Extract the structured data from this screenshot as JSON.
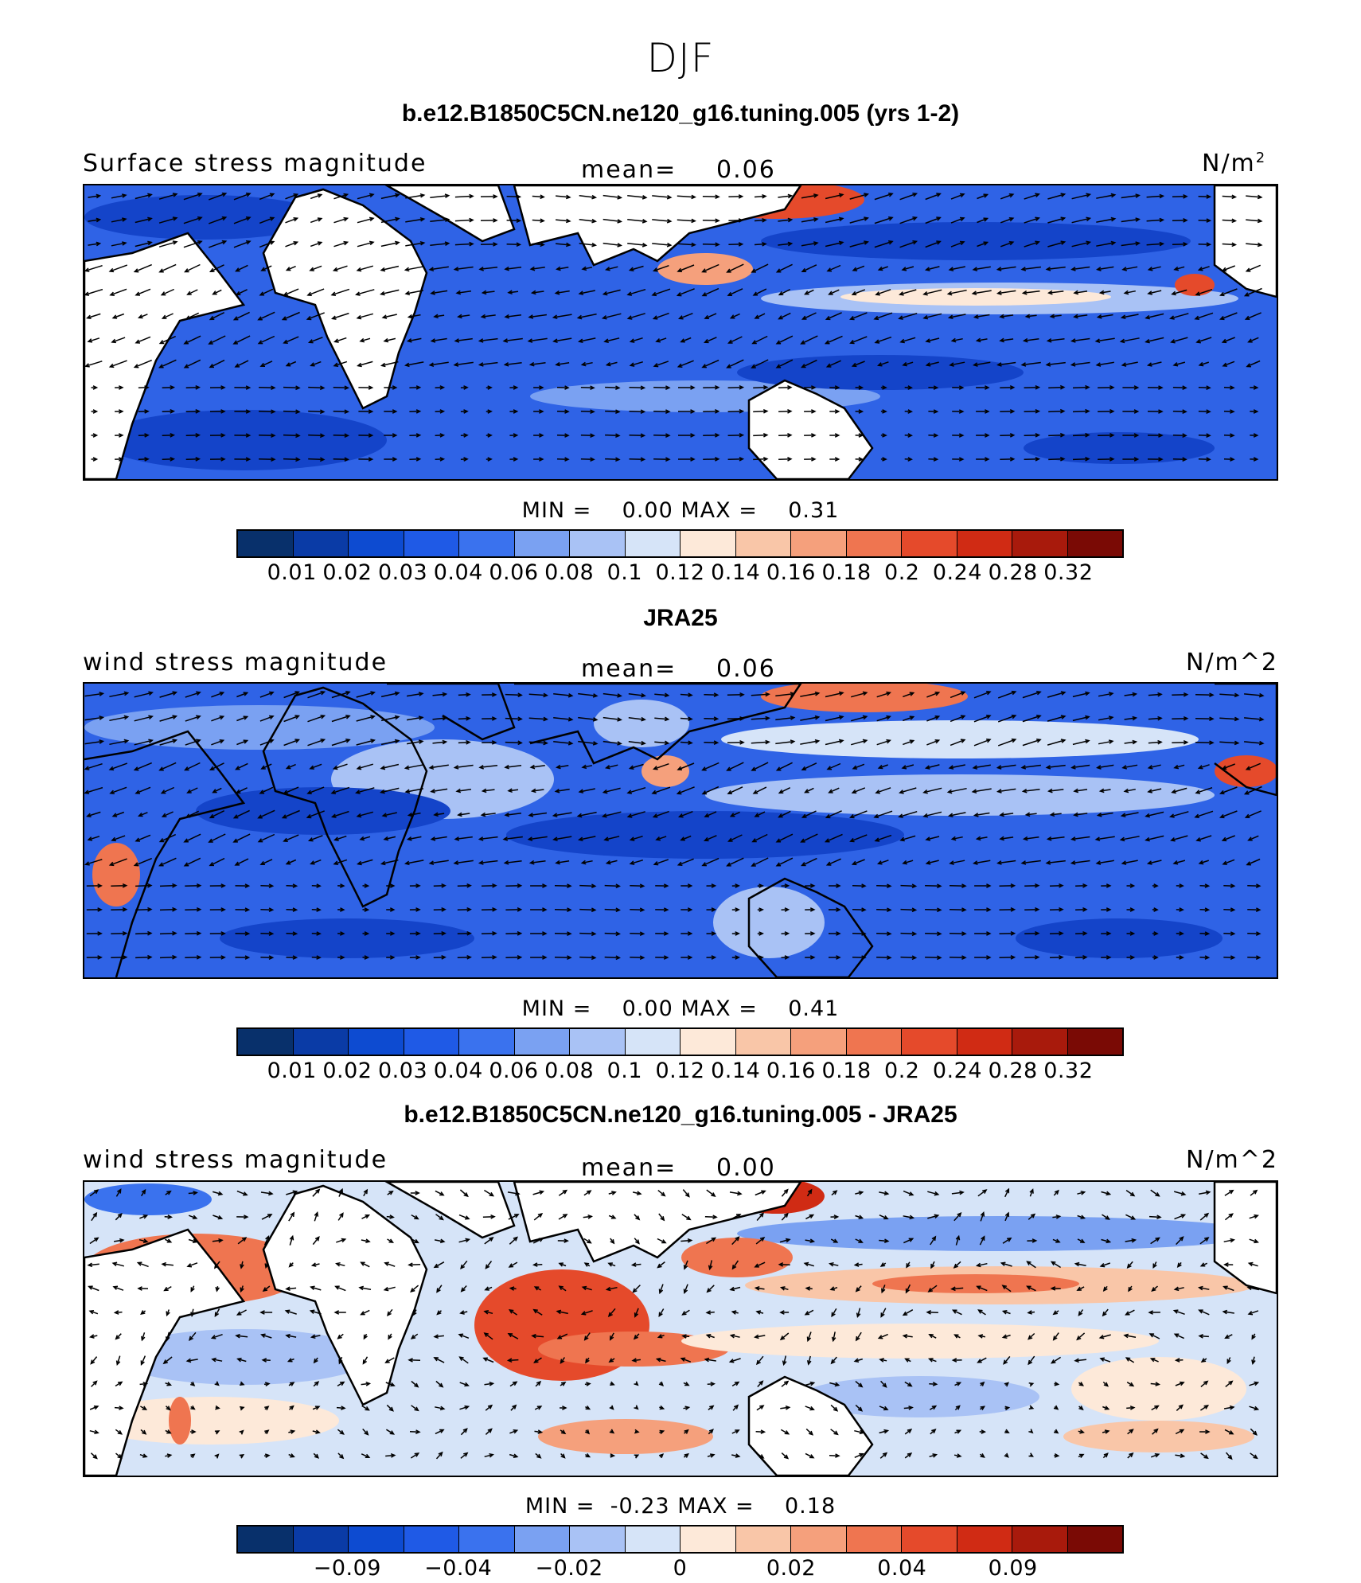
{
  "figure": {
    "season": "DJF"
  },
  "panels": [
    {
      "title": "b.e12.B1850C5CN.ne120_g16.tuning.005 (yrs 1-2)",
      "left_label": "Surface stress magnitude",
      "mean_label": "mean=",
      "mean_value": "0.06",
      "units": "N/m",
      "units_sup": "2",
      "min_label": "MIN =",
      "min_value": "0.00",
      "max_label": "MAX =",
      "max_value": "0.31",
      "colorbar": {
        "ticks": [
          "0.01",
          "0.02",
          "0.03",
          "0.04",
          "0.06",
          "0.08",
          "0.1",
          "0.12",
          "0.14",
          "0.16",
          "0.18",
          "0.2",
          "0.24",
          "0.28",
          "0.32"
        ],
        "colors": [
          "#08306b",
          "#0a3ba6",
          "#0d4bd1",
          "#1f5ae6",
          "#3a72ee",
          "#7aa1f2",
          "#a9c2f5",
          "#d6e4f8",
          "#fde9d9",
          "#f9c6a8",
          "#f5a07c",
          "#ef7550",
          "#e54a2b",
          "#d02b14",
          "#a81a0c",
          "#7a0a05"
        ]
      },
      "map_type": "magnitude"
    },
    {
      "title": "JRA25",
      "left_label": "wind stress magnitude",
      "mean_label": "mean=",
      "mean_value": "0.06",
      "units": "N/m^2",
      "units_sup": "",
      "min_label": "MIN =",
      "min_value": "0.00",
      "max_label": "MAX =",
      "max_value": "0.41",
      "colorbar": {
        "ticks": [
          "0.01",
          "0.02",
          "0.03",
          "0.04",
          "0.06",
          "0.08",
          "0.1",
          "0.12",
          "0.14",
          "0.16",
          "0.18",
          "0.2",
          "0.24",
          "0.28",
          "0.32"
        ],
        "colors": [
          "#08306b",
          "#0a3ba6",
          "#0d4bd1",
          "#1f5ae6",
          "#3a72ee",
          "#7aa1f2",
          "#a9c2f5",
          "#d6e4f8",
          "#fde9d9",
          "#f9c6a8",
          "#f5a07c",
          "#ef7550",
          "#e54a2b",
          "#d02b14",
          "#a81a0c",
          "#7a0a05"
        ]
      },
      "map_type": "magnitude_land"
    },
    {
      "title": "b.e12.B1850C5CN.ne120_g16.tuning.005 - JRA25",
      "left_label": "wind stress magnitude",
      "mean_label": "mean=",
      "mean_value": "0.00",
      "units": "N/m^2",
      "units_sup": "",
      "min_label": "MIN =",
      "min_value": "-0.23",
      "max_label": "MAX =",
      "max_value": "0.18",
      "colorbar": {
        "ticks": [
          "−0.09",
          "−0.04",
          "−0.02",
          "0",
          "0.02",
          "0.04",
          "0.09"
        ],
        "colors": [
          "#08306b",
          "#0a3ba6",
          "#0d4bd1",
          "#1f5ae6",
          "#3a72ee",
          "#7aa1f2",
          "#a9c2f5",
          "#d6e4f8",
          "#fde9d9",
          "#f9c6a8",
          "#f5a07c",
          "#ef7550",
          "#e54a2b",
          "#d02b14",
          "#a81a0c",
          "#7a0a05"
        ]
      },
      "map_type": "difference"
    }
  ]
}
